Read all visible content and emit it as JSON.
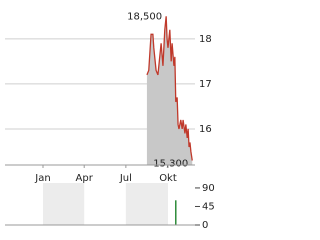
{
  "chart_data": [
    {
      "type": "area",
      "color": "#c0392b",
      "fill": "#c8c8c8",
      "grid": true,
      "x": [
        227,
        231,
        236,
        240,
        242,
        247,
        251,
        255,
        258,
        262,
        266,
        269,
        271,
        273,
        277,
        280,
        282,
        286,
        288,
        290,
        293,
        295,
        297,
        301,
        304,
        306,
        310,
        312,
        315,
        317,
        319,
        321,
        323,
        326
      ],
      "values": [
        17.2,
        17.3,
        18.1,
        18.1,
        17.8,
        17.3,
        17.2,
        17.6,
        17.9,
        17.4,
        18.2,
        18.5,
        18.0,
        17.8,
        18.2,
        17.5,
        17.9,
        17.4,
        17.6,
        16.6,
        16.7,
        16.1,
        16.0,
        16.2,
        16.0,
        16.2,
        15.9,
        16.1,
        15.8,
        16.0,
        15.6,
        15.7,
        15.5,
        15.3
      ],
      "annotations": [
        {
          "x": 269,
          "value": 18.5,
          "label": "18,500"
        },
        {
          "x": 326,
          "value": 15.3,
          "label": "15,300"
        }
      ],
      "xlim": [
        -83,
        332
      ],
      "ylim": [
        15.2,
        18.64
      ],
      "yticks": [
        16,
        17,
        18
      ],
      "xticks": [
        {
          "value": 0,
          "label": "Jan"
        },
        {
          "value": 90,
          "label": "Apr"
        },
        {
          "value": 181,
          "label": "Jul"
        },
        {
          "value": 273,
          "label": "Okt"
        }
      ]
    },
    {
      "type": "bar",
      "color": "#2e8b3a",
      "x": [
        290
      ],
      "values": [
        60
      ],
      "xlim": [
        -83,
        332
      ],
      "ylim": [
        0,
        102
      ],
      "yticks": [
        0,
        45,
        90
      ]
    }
  ]
}
